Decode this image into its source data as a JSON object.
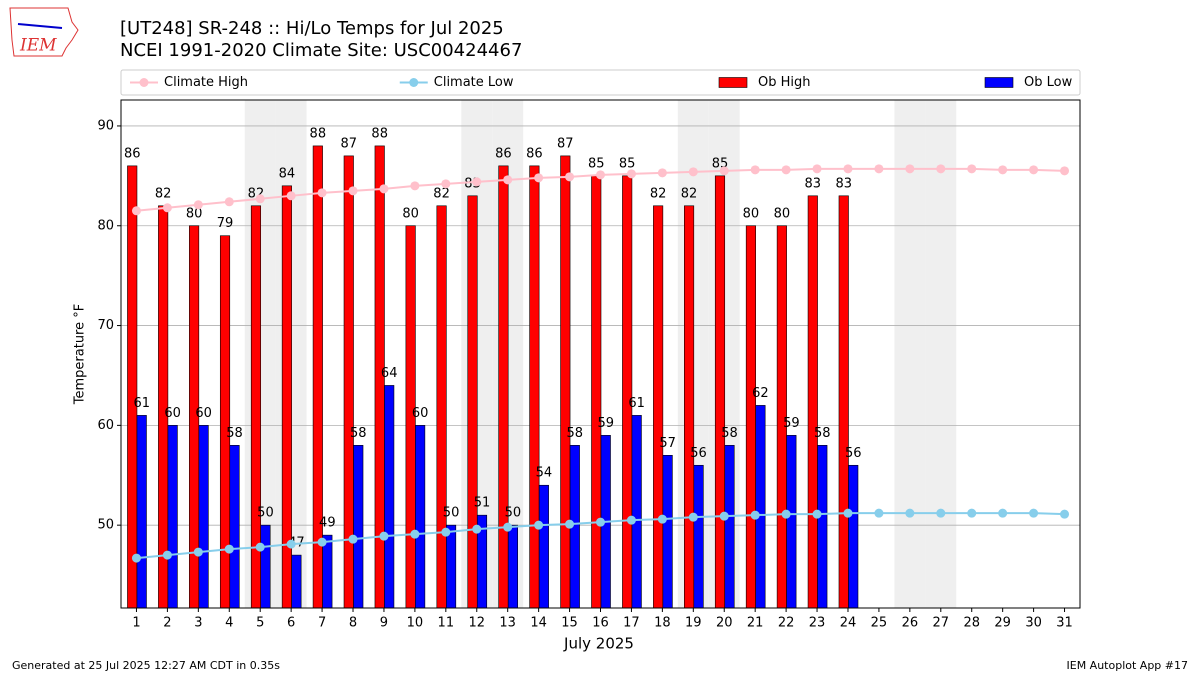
{
  "logo": "IEM",
  "footer_left": "Generated at 25 Jul 2025 12:27 AM CDT in 0.35s",
  "footer_right": "IEM Autoplot App #17",
  "chart_data": {
    "type": "bar",
    "title": "[UT248] SR-248  :: Hi/Lo Temps for Jul 2025",
    "subtitle": "NCEI 1991-2020 Climate Site: USC00424467",
    "x_label": "July 2025",
    "y_label": "Temperature °F",
    "categories": [
      "1",
      "2",
      "3",
      "4",
      "5",
      "6",
      "7",
      "8",
      "9",
      "10",
      "11",
      "12",
      "13",
      "14",
      "15",
      "16",
      "17",
      "18",
      "19",
      "20",
      "21",
      "22",
      "23",
      "24",
      "25",
      "26",
      "27",
      "28",
      "29",
      "30",
      "31"
    ],
    "shaded_categories": [
      "5",
      "6",
      "12",
      "13",
      "19",
      "20",
      "26",
      "27"
    ],
    "ylim": [
      41.7,
      92.6
    ],
    "yticks": [
      50,
      60,
      70,
      80,
      90
    ],
    "grid": true,
    "legend": "top",
    "series": [
      {
        "name": "Climate High",
        "type": "line",
        "color": "#ffc0cb",
        "values": [
          81.5,
          81.8,
          82.1,
          82.4,
          82.7,
          83.0,
          83.3,
          83.5,
          83.7,
          84.0,
          84.2,
          84.4,
          84.6,
          84.8,
          84.9,
          85.1,
          85.2,
          85.3,
          85.4,
          85.5,
          85.6,
          85.6,
          85.7,
          85.7,
          85.7,
          85.7,
          85.7,
          85.7,
          85.6,
          85.6,
          85.5
        ]
      },
      {
        "name": "Climate Low",
        "type": "line",
        "color": "#87ceeb",
        "values": [
          46.7,
          47.0,
          47.3,
          47.6,
          47.8,
          48.1,
          48.3,
          48.6,
          48.9,
          49.1,
          49.3,
          49.6,
          49.8,
          50.0,
          50.1,
          50.3,
          50.5,
          50.6,
          50.8,
          50.9,
          51.0,
          51.1,
          51.1,
          51.2,
          51.2,
          51.2,
          51.2,
          51.2,
          51.2,
          51.2,
          51.1
        ]
      },
      {
        "name": "Ob High",
        "type": "bar",
        "color": "#ff0000",
        "values": [
          86,
          82,
          80,
          79,
          82,
          84,
          88,
          87,
          88,
          80,
          82,
          83,
          86,
          86,
          87,
          85,
          85,
          82,
          82,
          85,
          80,
          80,
          83,
          83,
          null,
          null,
          null,
          null,
          null,
          null,
          null
        ]
      },
      {
        "name": "Ob Low",
        "type": "bar",
        "color": "#0000ff",
        "values": [
          61,
          60,
          60,
          58,
          50,
          47,
          49,
          58,
          64,
          60,
          50,
          51,
          50,
          54,
          58,
          59,
          61,
          57,
          56,
          58,
          62,
          59,
          58,
          56,
          null,
          null,
          null,
          null,
          null,
          null,
          null
        ]
      }
    ]
  }
}
